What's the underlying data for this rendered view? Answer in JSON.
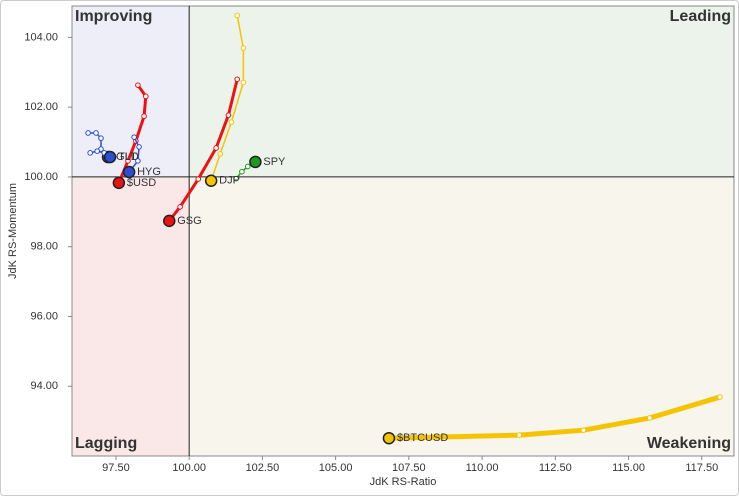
{
  "chart_data": {
    "type": "rrg",
    "x_label": "JdK RS-Ratio",
    "y_label": "JdK RS-Momentum",
    "xlim": [
      96,
      118.6
    ],
    "ylim": [
      92,
      104.9
    ],
    "center": {
      "x": 100,
      "y": 100
    },
    "xticks": [
      {
        "value": 97.5,
        "label": "97.50"
      },
      {
        "value": 100,
        "label": "100.00"
      },
      {
        "value": 102.5,
        "label": "102.50"
      },
      {
        "value": 105,
        "label": "105.00"
      },
      {
        "value": 107.5,
        "label": "107.50"
      },
      {
        "value": 110,
        "label": "110.00"
      },
      {
        "value": 112.5,
        "label": "112.50"
      },
      {
        "value": 115,
        "label": "115.00"
      },
      {
        "value": 117.5,
        "label": "117.50"
      }
    ],
    "yticks": [
      {
        "value": 94,
        "label": "94.00"
      },
      {
        "value": 96,
        "label": "96.00"
      },
      {
        "value": 98,
        "label": "98.00"
      },
      {
        "value": 100,
        "label": "100.00"
      },
      {
        "value": 102,
        "label": "102.00"
      },
      {
        "value": 104,
        "label": "104.00"
      }
    ],
    "quadrants": [
      {
        "name": "Improving",
        "corner": "top-left",
        "fill": "#eeeef9",
        "color": "#8c8cf0"
      },
      {
        "name": "Leading",
        "corner": "top-right",
        "fill": "#ebf3ea",
        "color": "#6cbb6c"
      },
      {
        "name": "Lagging",
        "corner": "bottom-left",
        "fill": "#fae8e8",
        "color": "#f09c9c"
      },
      {
        "name": "Weakening",
        "corner": "bottom-right",
        "fill": "#f8f5ec",
        "color": "#f0c030"
      }
    ],
    "series": [
      {
        "name": "SPY",
        "color": "#1f9a1f",
        "line_width": 1.5,
        "x": [
          101.6,
          101.8,
          102.0,
          102.26
        ],
        "values": [
          99.95,
          100.15,
          100.3,
          100.43
        ]
      },
      {
        "name": "DJP",
        "color": "#f5c400",
        "line_width": 1.5,
        "x": [
          101.64,
          101.85,
          101.85,
          101.44,
          101.06,
          100.75
        ],
        "values": [
          104.63,
          103.69,
          102.71,
          101.57,
          100.66,
          99.89
        ]
      },
      {
        "name": "GSG",
        "color": "#ee1111",
        "line_width": 3,
        "x": [
          101.64,
          101.34,
          100.92,
          100.31,
          99.69,
          99.32
        ],
        "values": [
          102.8,
          101.77,
          100.83,
          99.94,
          99.14,
          98.74
        ]
      },
      {
        "name": "$USD",
        "color": "#ee1111",
        "line_width": 3,
        "x": [
          98.25,
          98.52,
          98.46,
          98.18,
          97.91,
          97.6
        ],
        "values": [
          102.63,
          102.31,
          101.74,
          101.03,
          100.46,
          99.83
        ]
      },
      {
        "name": "HYG",
        "color": "#2a4fd6",
        "line_width": 1.5,
        "x": [
          98.12,
          98.29,
          98.25,
          97.95
        ],
        "values": [
          101.14,
          100.86,
          100.46,
          100.14
        ]
      },
      {
        "name": "GLD",
        "color": "#2a4fd6",
        "line_width": 1.5,
        "x": [
          96.55,
          96.82,
          96.99,
          96.99,
          97.23
        ],
        "values": [
          101.26,
          101.26,
          101.11,
          100.8,
          100.57
        ]
      },
      {
        "name": "TLT",
        "color": "#2a4fd6",
        "line_width": 1.5,
        "x": [
          96.62,
          96.86,
          97.1,
          97.3
        ],
        "values": [
          100.69,
          100.74,
          100.69,
          100.57
        ]
      },
      {
        "name": "$BTCUSD",
        "color": "#f5c400",
        "line_width": 5,
        "x": [
          118.12,
          115.72,
          113.46,
          111.27,
          106.82
        ],
        "values": [
          93.69,
          93.09,
          92.74,
          92.6,
          92.51
        ]
      }
    ]
  }
}
